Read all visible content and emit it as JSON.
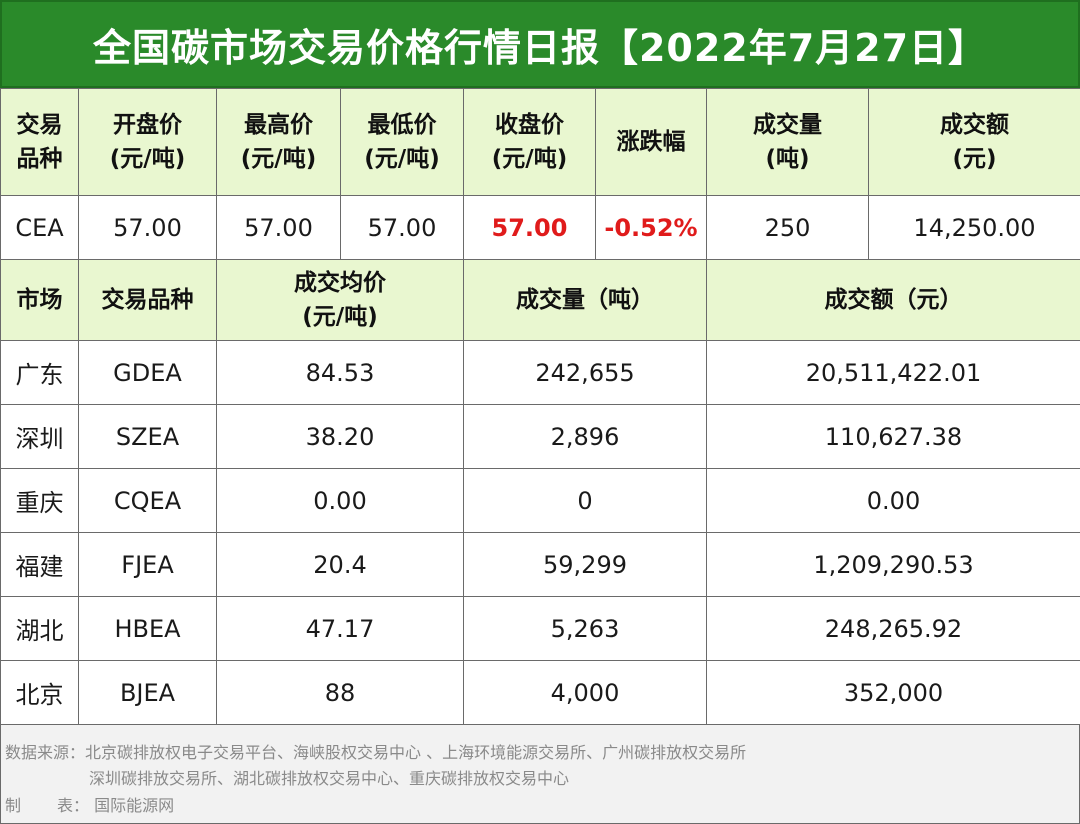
{
  "title": "全国碳市场交易价格行情日报【2022年7月27日】",
  "national": {
    "headers": [
      [
        "交易",
        "品种"
      ],
      [
        "开盘价",
        "(元/吨)"
      ],
      [
        "最高价",
        "(元/吨)"
      ],
      [
        "最低价",
        "(元/吨)"
      ],
      [
        "收盘价",
        "(元/吨)"
      ],
      [
        "涨跌幅",
        ""
      ],
      [
        "成交量",
        "(吨)"
      ],
      [
        "成交额",
        "(元)"
      ]
    ],
    "row": [
      "CEA",
      "57.00",
      "57.00",
      "57.00",
      "57.00",
      "-0.52%",
      "250",
      "14,250.00"
    ]
  },
  "regional": {
    "headers": [
      "市场",
      "交易品种",
      "成交均价",
      "(元/吨)",
      "成交量（吨）",
      "成交额（元）"
    ],
    "rows": [
      [
        "广东",
        "GDEA",
        "84.53",
        "242,655",
        "20,511,422.01"
      ],
      [
        "深圳",
        "SZEA",
        "38.20",
        "2,896",
        "110,627.38"
      ],
      [
        "重庆",
        "CQEA",
        "0.00",
        "0",
        "0.00"
      ],
      [
        "福建",
        "FJEA",
        "20.4",
        "59,299",
        "1,209,290.53"
      ],
      [
        "湖北",
        "HBEA",
        "47.17",
        "5,263",
        "248,265.92"
      ],
      [
        "北京",
        "BJEA",
        "88",
        "4,000",
        "352,000"
      ]
    ]
  },
  "notes": {
    "source_label": "数据来源：",
    "source_line1": "北京碳排放权电子交易平台、海峡股权交易中心 、上海环境能源交易所、广州碳排放权交易所",
    "source_line2": "深圳碳排放交易所、湖北碳排放权交易中心、重庆碳排放权交易中心",
    "maker_label_1": "制",
    "maker_label_2": "表：",
    "maker": "国际能源网"
  },
  "colors": {
    "header_bg": "#e9f7d0",
    "title_bg": "#2a8a2a",
    "highlight": "#e01b1b"
  }
}
